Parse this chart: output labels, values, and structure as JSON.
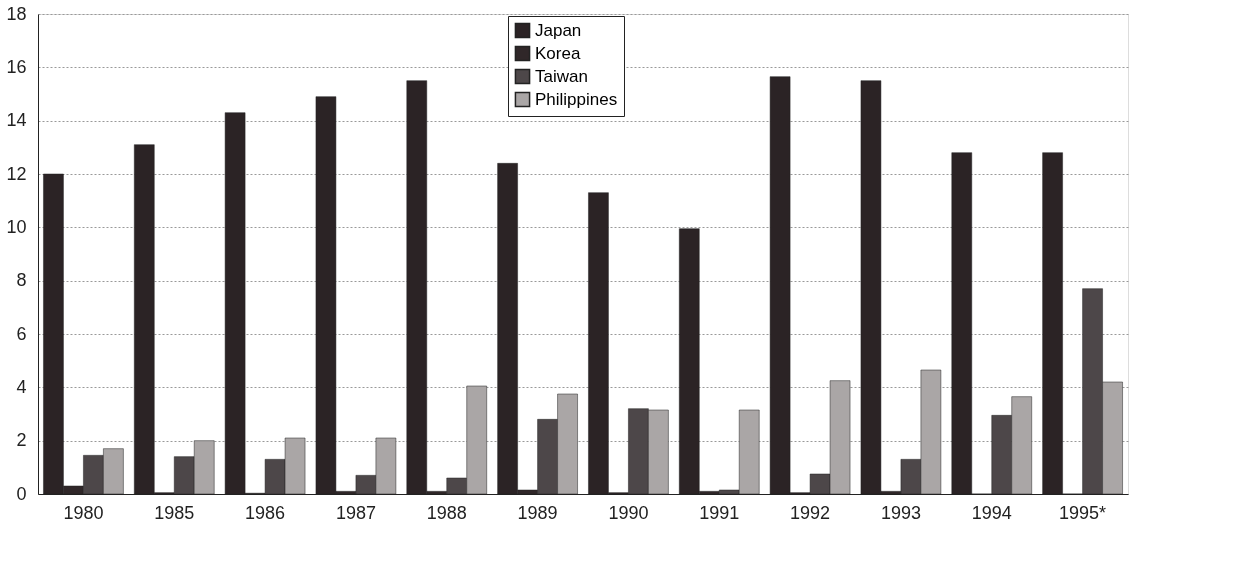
{
  "chart_data": {
    "type": "bar",
    "categories": [
      "1980",
      "1985",
      "1986",
      "1987",
      "1988",
      "1989",
      "1990",
      "1991",
      "1992",
      "1993",
      "1994",
      "1995*"
    ],
    "series": [
      {
        "name": "Japan",
        "color": "#2b2325",
        "values": [
          12.0,
          13.1,
          14.3,
          14.9,
          15.5,
          12.4,
          11.3,
          9.95,
          15.65,
          15.5,
          12.8,
          12.8
        ]
      },
      {
        "name": "Korea",
        "color": "#302729",
        "values": [
          0.3,
          0.05,
          0.03,
          0.1,
          0.1,
          0.15,
          0.05,
          0.1,
          0.05,
          0.1,
          0,
          0
        ]
      },
      {
        "name": "Taiwan",
        "color": "#4d4749",
        "values": [
          1.45,
          1.4,
          1.3,
          0.7,
          0.6,
          2.8,
          3.2,
          0.15,
          0.75,
          1.3,
          2.95,
          7.7
        ]
      },
      {
        "name": "Philippines",
        "color": "#aaa6a6",
        "values": [
          1.7,
          2.0,
          2.1,
          2.1,
          4.05,
          3.75,
          3.15,
          3.15,
          4.25,
          4.65,
          3.65,
          4.2
        ]
      }
    ],
    "ylim": [
      0,
      18
    ],
    "yticks": [
      0,
      2,
      4,
      6,
      8,
      10,
      12,
      14,
      16,
      18
    ],
    "grid": "y",
    "legend": "top"
  }
}
